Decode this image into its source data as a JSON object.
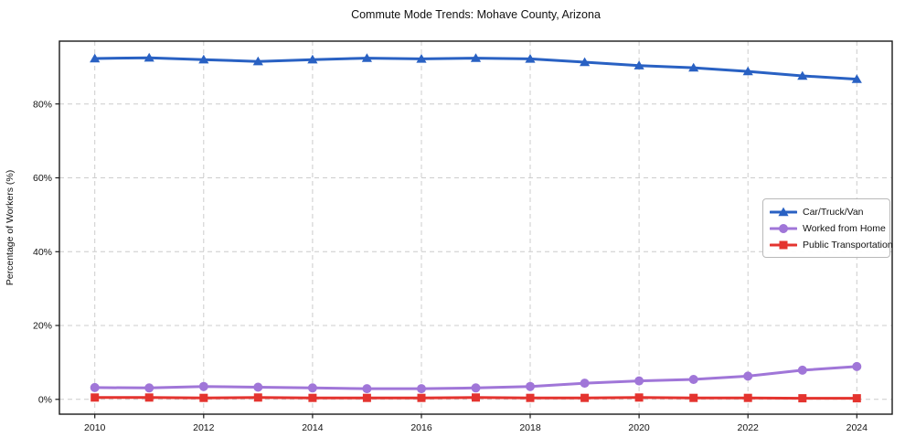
{
  "title": "Commute Mode Trends: Mohave County, Arizona",
  "chart_data": {
    "type": "line",
    "title": "Commute Mode Trends: Mohave County, Arizona",
    "xlabel": "",
    "ylabel": "Percentage of Workers (%)",
    "x": [
      2010,
      2011,
      2012,
      2013,
      2014,
      2015,
      2016,
      2017,
      2018,
      2019,
      2020,
      2021,
      2022,
      2023,
      2024
    ],
    "series": [
      {
        "name": "Car/Truck/Van",
        "color": "#2961c3",
        "marker": "triangle",
        "values": [
          92.3,
          92.5,
          92.0,
          91.5,
          92.0,
          92.4,
          92.2,
          92.4,
          92.2,
          91.3,
          90.4,
          89.8,
          88.8,
          87.6,
          86.7
        ]
      },
      {
        "name": "Worked from Home",
        "color": "#a076d8",
        "marker": "circle",
        "values": [
          3.2,
          3.1,
          3.5,
          3.3,
          3.1,
          2.9,
          2.9,
          3.1,
          3.5,
          4.4,
          5.0,
          5.4,
          6.3,
          7.9,
          8.9
        ]
      },
      {
        "name": "Public Transportation",
        "color": "#e4342f",
        "marker": "square",
        "values": [
          0.5,
          0.5,
          0.4,
          0.5,
          0.4,
          0.4,
          0.4,
          0.5,
          0.4,
          0.4,
          0.5,
          0.4,
          0.4,
          0.3,
          0.3
        ]
      }
    ],
    "xticks": [
      2010,
      2012,
      2014,
      2016,
      2018,
      2020,
      2022,
      2024
    ],
    "xtick_labels": [
      "2010",
      "2012",
      "2014",
      "2016",
      "2018",
      "2020",
      "2022",
      "2024"
    ],
    "yticks": [
      0,
      20,
      40,
      60,
      80
    ],
    "ytick_labels": [
      "0%",
      "20%",
      "40%",
      "60%",
      "80%"
    ],
    "xlim": [
      2009.35,
      2024.65
    ],
    "ylim": [
      -4,
      97
    ],
    "grid": true,
    "grid_style": "dashed",
    "grid_color": "#cccccc",
    "spine_color": "#1a1a1a",
    "text_color": "#111111",
    "legend_position": "center-right"
  }
}
